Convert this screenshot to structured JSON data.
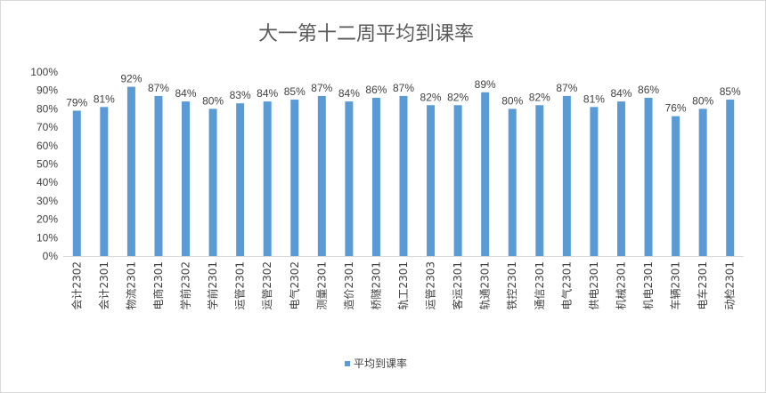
{
  "chart_data": {
    "type": "bar",
    "title": "大一第十二周平均到课率",
    "categories": [
      "会计2302",
      "会计2301",
      "物流2301",
      "电商2301",
      "学前2302",
      "学前2301",
      "运管2301",
      "运管2302",
      "电气2302",
      "测量2301",
      "造价2301",
      "桥隧2301",
      "轨工2301",
      "运管2303",
      "客运2301",
      "轨通2301",
      "铁控2301",
      "通信2301",
      "电气2301",
      "供电2301",
      "机械2301",
      "机电2301",
      "车辆2301",
      "电车2301",
      "动检2301"
    ],
    "series": [
      {
        "name": "平均到课率",
        "values": [
          79,
          81,
          92,
          87,
          84,
          80,
          83,
          84,
          85,
          87,
          84,
          86,
          87,
          82,
          82,
          89,
          80,
          82,
          87,
          81,
          84,
          86,
          76,
          80,
          85
        ],
        "labels": [
          "79%",
          "81%",
          "92%",
          "87%",
          "84%",
          "80%",
          "83%",
          "84%",
          "85%",
          "87%",
          "84%",
          "86%",
          "87%",
          "82%",
          "82%",
          "89%",
          "80%",
          "82%",
          "87%",
          "81%",
          "84%",
          "86%",
          "76%",
          "80%",
          "85%"
        ]
      }
    ],
    "ylim": [
      0,
      100
    ],
    "yticks": [
      "0%",
      "10%",
      "20%",
      "30%",
      "40%",
      "50%",
      "60%",
      "70%",
      "80%",
      "90%",
      "100%"
    ],
    "xlabel": "",
    "ylabel": "",
    "grid": false,
    "legend": "bottom",
    "colors": {
      "bar": "#5b9bd5",
      "axis": "#d9d9d9",
      "text": "#404040",
      "title": "#595959"
    }
  }
}
